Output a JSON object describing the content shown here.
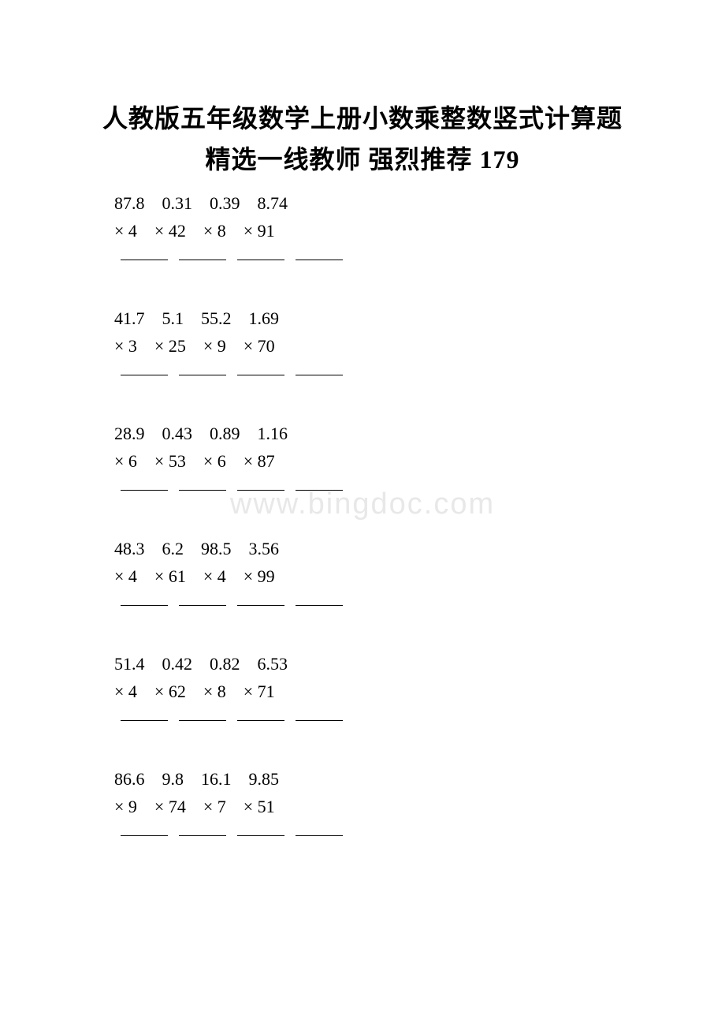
{
  "title_line1": "人教版五年级数学上册小数乘整数竖式计算题",
  "title_line2": "精选一线教师 强烈推荐 179",
  "watermark": "www.bingdoc.com",
  "groups": [
    {
      "top_row": "87.8　0.31　0.39　8.74",
      "mult_row": "× 4　× 42　× 8　× 91"
    },
    {
      "top_row": "41.7　5.1　55.2　1.69",
      "mult_row": "× 3　× 25　× 9　× 70"
    },
    {
      "top_row": "28.9　0.43　0.89　1.16",
      "mult_row": "× 6　× 53　× 6　× 87"
    },
    {
      "top_row": "48.3　6.2　98.5　3.56",
      "mult_row": "× 4　× 61　× 4　× 99"
    },
    {
      "top_row": "51.4　0.42　0.82　6.53",
      "mult_row": "× 4　× 62　× 8　× 71"
    },
    {
      "top_row": "86.6　9.8　16.1　9.85",
      "mult_row": "× 9　× 74　× 7　× 51"
    }
  ]
}
